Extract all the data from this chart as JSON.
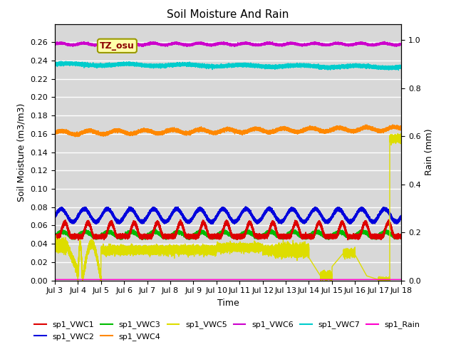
{
  "title": "Soil Moisture And Rain",
  "xlabel": "Time",
  "ylabel_left": "Soil Moisture (m3/m3)",
  "ylabel_right": "Rain (mm)",
  "tz_label": "TZ_osu",
  "days": 15,
  "ylim_left": [
    0.0,
    0.28
  ],
  "ylim_right": [
    0.0,
    1.0666666666
  ],
  "bg_color": "#d8d8d8",
  "colors": {
    "VWC1": "#dd0000",
    "VWC2": "#0000dd",
    "VWC3": "#00bb00",
    "VWC4": "#ff8800",
    "VWC5": "#dddd00",
    "VWC6": "#cc00cc",
    "VWC7": "#00cccc",
    "Rain": "#ff00cc"
  },
  "xtick_labels": [
    "Jul 3",
    "Jul 4",
    "Jul 5",
    "Jul 6",
    "Jul 7",
    "Jul 8",
    "Jul 9",
    "Jul 10",
    "Jul 11",
    "Jul 12",
    "Jul 13",
    "Jul 14",
    "Jul 15",
    "Jul 16",
    "Jul 17",
    "Jul 18"
  ]
}
